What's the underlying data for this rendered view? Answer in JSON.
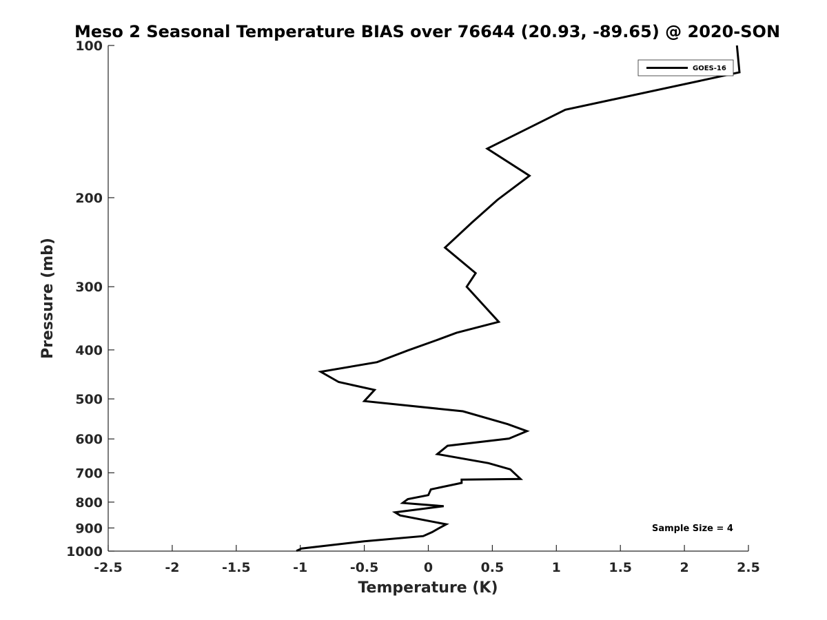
{
  "chart_data": {
    "type": "line",
    "title": "Meso 2 Seasonal Temperature BIAS over 76644 (20.93, -89.65) @ 2020-SON",
    "xlabel": "Temperature (K)",
    "ylabel": "Pressure (mb)",
    "xlim": [
      -2.5,
      2.5
    ],
    "ylim": [
      1000,
      100
    ],
    "y_scale": "log",
    "y_reversed": true,
    "grid": false,
    "legend_position": "top-right",
    "x_ticks": [
      "-2.5",
      "-2",
      "-1.5",
      "-1",
      "-0.5",
      "0",
      "0.5",
      "1",
      "1.5",
      "2",
      "2.5"
    ],
    "x_tick_values": [
      -2.5,
      -2,
      -1.5,
      -1,
      -0.5,
      0,
      0.5,
      1,
      1.5,
      2,
      2.5
    ],
    "y_ticks": [
      "100",
      "200",
      "300",
      "400",
      "500",
      "600",
      "700",
      "800",
      "900",
      "1000"
    ],
    "y_tick_values": [
      100,
      200,
      300,
      400,
      500,
      600,
      700,
      800,
      900,
      1000
    ],
    "series": [
      {
        "name": "GOES-16",
        "color": "#000000",
        "x": [
          2.41,
          2.43,
          1.07,
          0.46,
          0.79,
          0.54,
          0.34,
          0.13,
          0.37,
          0.3,
          0.43,
          0.55,
          0.22,
          0.06,
          -0.16,
          -0.4,
          -0.84,
          -0.7,
          -0.42,
          -0.5,
          0.27,
          0.62,
          0.77,
          0.63,
          0.15,
          0.07,
          0.47,
          0.64,
          0.72,
          0.26,
          0.26,
          0.02,
          0.0,
          -0.16,
          -0.2,
          0.12,
          -0.26,
          -0.22,
          0.14,
          0.08,
          0.03,
          -0.04,
          -0.5,
          -0.99,
          -1.03
        ],
        "y": [
          100,
          113,
          134,
          160,
          181,
          202,
          224,
          251,
          282,
          300,
          326,
          352,
          370,
          383,
          401,
          423,
          442,
          463,
          480,
          505,
          529,
          561,
          579,
          599,
          619,
          643,
          670,
          689,
          720,
          722,
          733,
          755,
          775,
          789,
          803,
          815,
          838,
          850,
          885,
          902,
          917,
          934,
          956,
          988,
          999
        ]
      }
    ],
    "annotations": [
      "Sample Size = 4"
    ]
  }
}
